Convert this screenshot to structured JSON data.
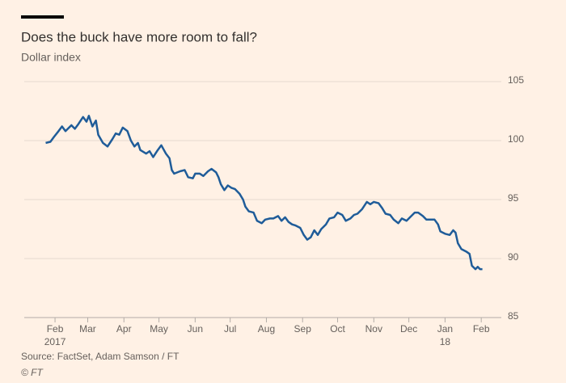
{
  "chart_data": {
    "type": "line",
    "title": "Does the buck have more room to fall?",
    "subtitle": "Dollar index",
    "source": "Source: FactSet, Adam Samson / FT",
    "copyright": "© FT",
    "ylim": [
      85,
      105
    ],
    "yticks": [
      85,
      90,
      95,
      100,
      105
    ],
    "xlim": [
      14,
      410
    ],
    "xticks": [
      {
        "value": 31,
        "label": "Feb"
      },
      {
        "value": 59,
        "label": "Mar"
      },
      {
        "value": 90,
        "label": "Apr"
      },
      {
        "value": 120,
        "label": "May"
      },
      {
        "value": 151,
        "label": "Jun"
      },
      {
        "value": 181,
        "label": "Jul"
      },
      {
        "value": 212,
        "label": "Aug"
      },
      {
        "value": 243,
        "label": "Sep"
      },
      {
        "value": 273,
        "label": "Oct"
      },
      {
        "value": 304,
        "label": "Nov"
      },
      {
        "value": 334,
        "label": "Dec"
      },
      {
        "value": 365,
        "label": "Jan"
      },
      {
        "value": 396,
        "label": "Feb"
      }
    ],
    "xsublabels": [
      {
        "value": 31,
        "label": "2017"
      },
      {
        "value": 365,
        "label": "18"
      }
    ],
    "grid": true,
    "series": [
      {
        "name": "Dollar index",
        "color": "#1f5c99",
        "x": [
          23,
          27,
          30,
          34,
          37,
          40,
          45,
          48,
          51,
          55,
          58,
          60,
          63,
          66,
          68,
          72,
          76,
          80,
          83,
          86,
          89,
          93,
          96,
          99,
          102,
          104,
          109,
          112,
          115,
          119,
          122,
          126,
          129,
          131,
          133,
          138,
          142,
          145,
          149,
          151,
          155,
          158,
          162,
          165,
          169,
          171,
          173,
          176,
          179,
          182,
          185,
          189,
          192,
          194,
          197,
          201,
          204,
          208,
          211,
          215,
          218,
          222,
          225,
          228,
          231,
          234,
          237,
          241,
          244,
          247,
          250,
          253,
          256,
          259,
          263,
          266,
          270,
          273,
          277,
          280,
          284,
          287,
          290,
          294,
          298,
          301,
          304,
          308,
          311,
          314,
          318,
          321,
          325,
          328,
          332,
          335,
          339,
          342,
          346,
          349,
          353,
          356,
          359,
          361,
          365,
          369,
          372,
          374,
          376,
          379,
          383,
          386,
          388,
          391,
          393,
          395,
          397
        ],
        "values": [
          99.8,
          99.9,
          100.3,
          100.8,
          101.2,
          100.8,
          101.3,
          101,
          101.4,
          102,
          101.6,
          102.1,
          101.2,
          101.7,
          100.5,
          99.8,
          99.5,
          100.1,
          100.6,
          100.5,
          101.1,
          100.8,
          100,
          99.5,
          99.8,
          99.2,
          98.9,
          99.1,
          98.6,
          99.2,
          99.6,
          98.9,
          98.5,
          97.5,
          97.2,
          97.4,
          97.5,
          96.9,
          96.8,
          97.2,
          97.2,
          97.0,
          97.4,
          97.6,
          97.3,
          96.9,
          96.3,
          95.8,
          96.2,
          96.0,
          95.9,
          95.5,
          95.0,
          94.4,
          94.0,
          93.9,
          93.2,
          93.0,
          93.3,
          93.4,
          93.4,
          93.6,
          93.2,
          93.5,
          93.1,
          92.9,
          92.8,
          92.6,
          92.0,
          91.6,
          91.8,
          92.4,
          92.0,
          92.5,
          92.9,
          93.4,
          93.5,
          93.9,
          93.7,
          93.2,
          93.4,
          93.7,
          93.8,
          94.2,
          94.8,
          94.6,
          94.8,
          94.7,
          94.3,
          93.8,
          93.7,
          93.3,
          93.0,
          93.4,
          93.2,
          93.5,
          93.9,
          93.9,
          93.6,
          93.3,
          93.3,
          93.3,
          92.9,
          92.3,
          92.1,
          92.0,
          92.4,
          92.2,
          91.3,
          90.8,
          90.6,
          90.4,
          89.4,
          89.1,
          89.3,
          89.1,
          89.1
        ]
      }
    ]
  }
}
